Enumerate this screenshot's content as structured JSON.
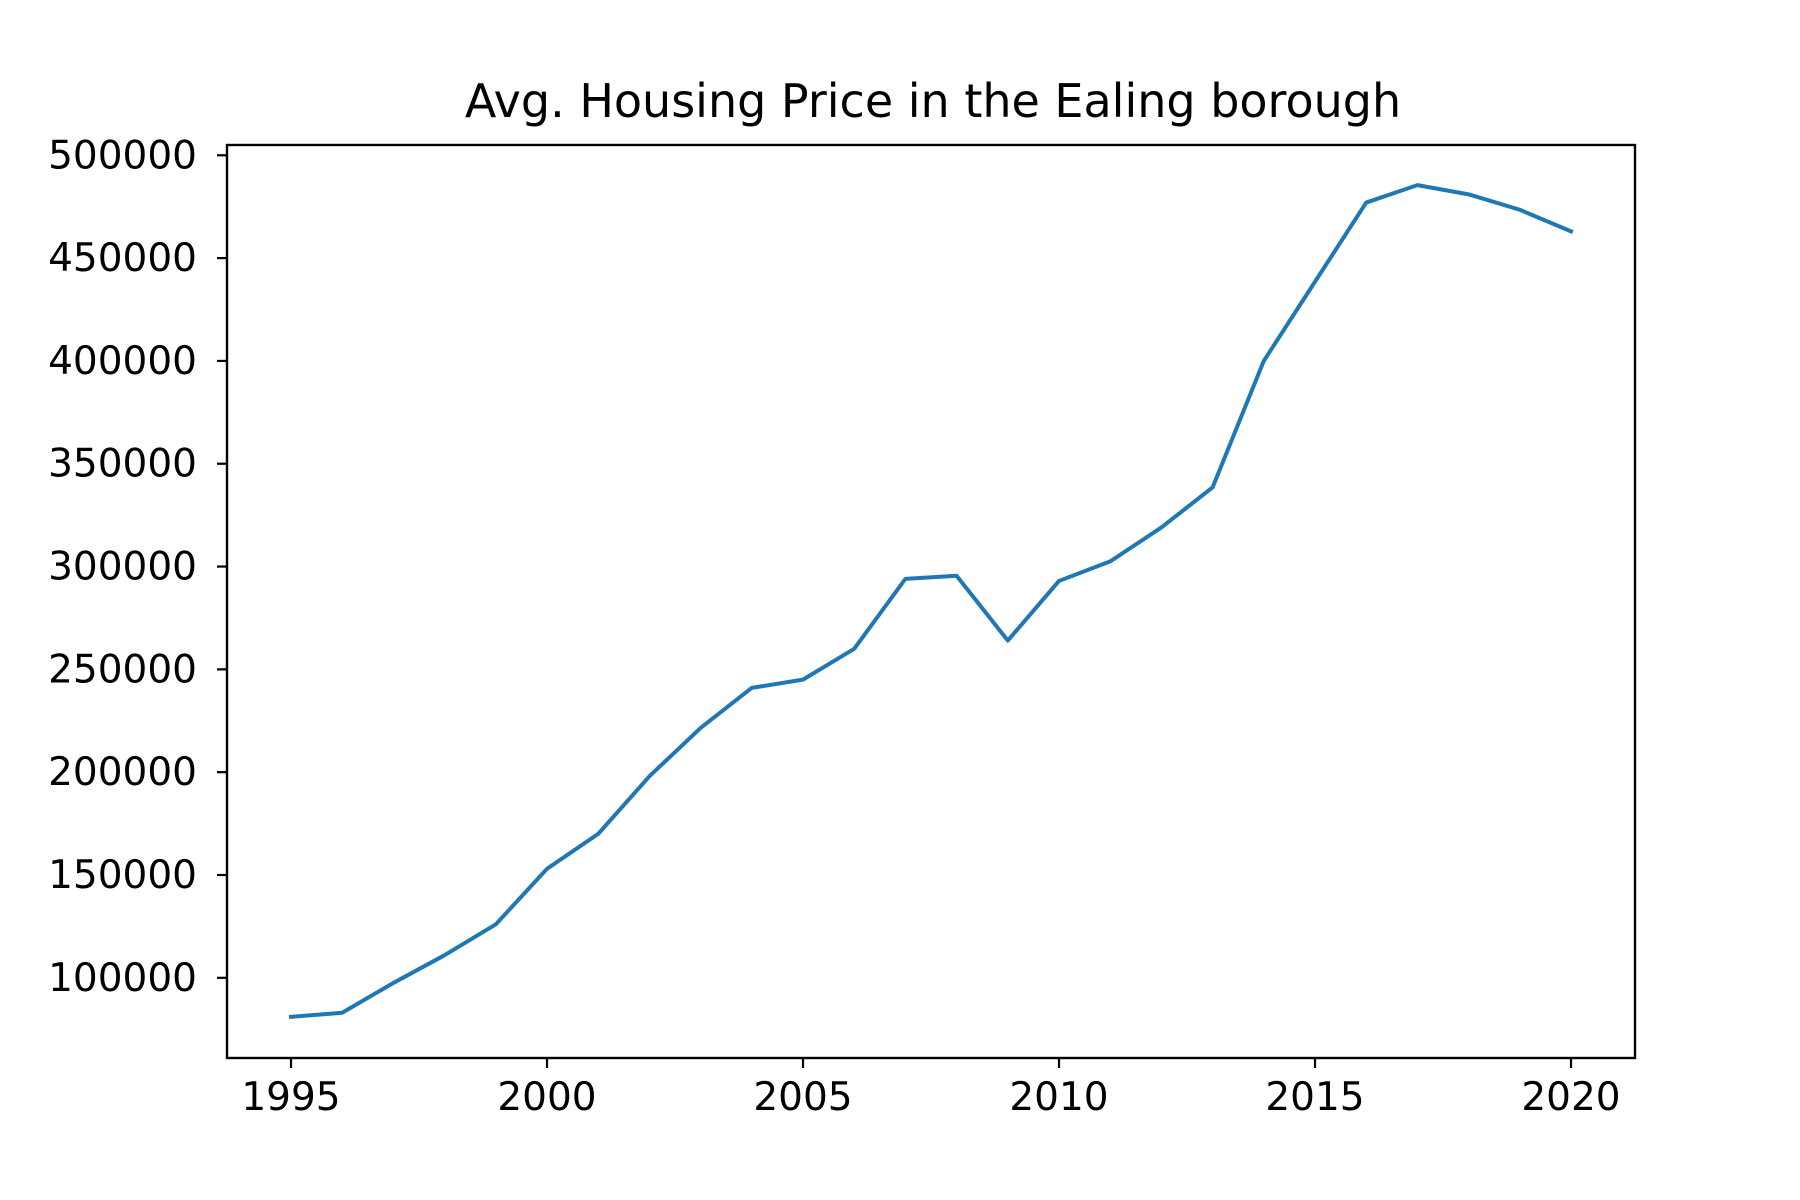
{
  "chart_data": {
    "type": "line",
    "title": "Avg. Housing Price in the Ealing borough",
    "xlabel": "",
    "ylabel": "",
    "x": [
      1995,
      1996,
      1997,
      1998,
      1999,
      2000,
      2001,
      2002,
      2003,
      2004,
      2005,
      2006,
      2007,
      2008,
      2009,
      2010,
      2011,
      2012,
      2013,
      2014,
      2015,
      2016,
      2017,
      2018,
      2019,
      2020
    ],
    "series": [
      {
        "color": "#1f77b4",
        "values": [
          81000,
          83000,
          97500,
          111000,
          126000,
          153000,
          170000,
          198000,
          221500,
          241000,
          245000,
          260000,
          294000,
          295500,
          264000,
          293000,
          302500,
          319000,
          338500,
          400000,
          438500,
          477000,
          485500,
          481000,
          473500,
          463000
        ]
      }
    ],
    "xlim": [
      1993.75,
      2021.25
    ],
    "ylim": [
      61000,
      505000
    ],
    "xticks": [
      1995,
      2000,
      2005,
      2010,
      2015,
      2020
    ],
    "yticks": [
      100000,
      150000,
      200000,
      250000,
      300000,
      350000,
      400000,
      450000,
      500000
    ],
    "grid": false,
    "legend": "none"
  }
}
